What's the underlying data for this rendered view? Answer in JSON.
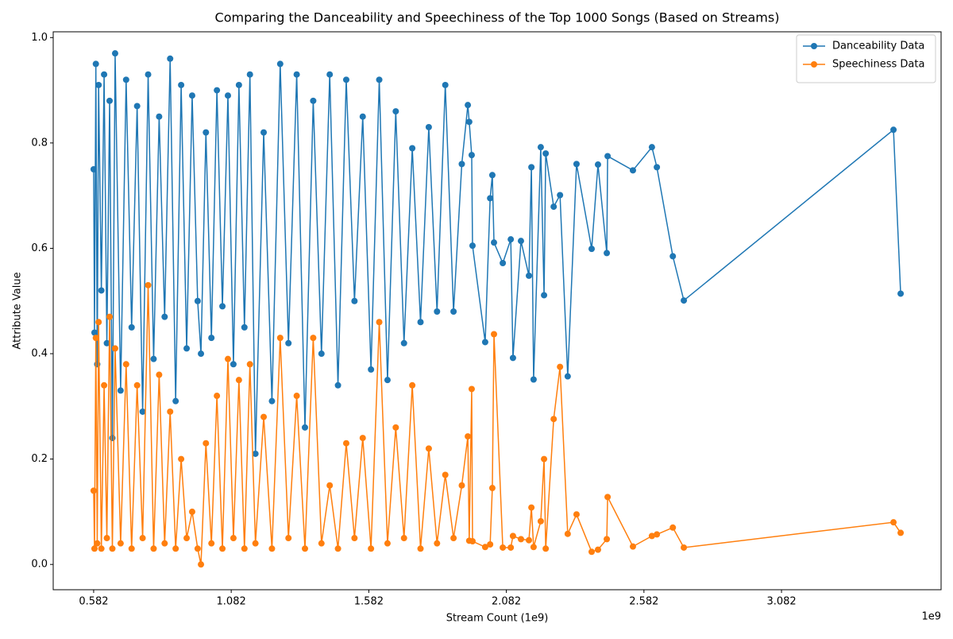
{
  "chart_data": {
    "type": "line",
    "title": "Comparing the Danceability and Speechiness of the Top 1000 Songs (Based on Streams)",
    "xlabel": "Stream Count (1e9)",
    "ylabel": "Attribute Value",
    "x_offset_label": "1e9",
    "x": [
      0.582,
      0.585,
      0.59,
      0.595,
      0.6,
      0.61,
      0.62,
      0.63,
      0.64,
      0.65,
      0.66,
      0.68,
      0.7,
      0.72,
      0.74,
      0.76,
      0.78,
      0.8,
      0.82,
      0.84,
      0.86,
      0.88,
      0.9,
      0.92,
      0.94,
      0.96,
      0.972,
      0.99,
      1.01,
      1.03,
      1.05,
      1.07,
      1.09,
      1.11,
      1.13,
      1.15,
      1.17,
      1.2,
      1.23,
      1.26,
      1.29,
      1.32,
      1.35,
      1.38,
      1.41,
      1.44,
      1.47,
      1.5,
      1.53,
      1.56,
      1.59,
      1.62,
      1.65,
      1.68,
      1.71,
      1.74,
      1.77,
      1.8,
      1.83,
      1.86,
      1.89,
      1.92,
      1.942,
      1.947,
      1.956,
      1.959,
      2.005,
      2.023,
      2.031,
      2.037,
      2.069,
      2.098,
      2.106,
      2.135,
      2.164,
      2.173,
      2.181,
      2.207,
      2.219,
      2.225,
      2.254,
      2.277,
      2.305,
      2.337,
      2.392,
      2.415,
      2.447,
      2.45,
      2.542,
      2.611,
      2.629,
      2.687,
      2.727,
      3.489,
      3.515
    ],
    "series": [
      {
        "name": "Danceability Data",
        "color": "#1f77b4",
        "values": [
          0.75,
          0.44,
          0.95,
          0.38,
          0.91,
          0.52,
          0.93,
          0.42,
          0.88,
          0.24,
          0.97,
          0.33,
          0.92,
          0.45,
          0.87,
          0.29,
          0.93,
          0.39,
          0.85,
          0.47,
          0.96,
          0.31,
          0.91,
          0.41,
          0.89,
          0.5,
          0.4,
          0.82,
          0.43,
          0.9,
          0.49,
          0.89,
          0.38,
          0.91,
          0.45,
          0.93,
          0.21,
          0.82,
          0.31,
          0.95,
          0.42,
          0.93,
          0.26,
          0.88,
          0.4,
          0.93,
          0.34,
          0.92,
          0.5,
          0.85,
          0.37,
          0.92,
          0.35,
          0.86,
          0.42,
          0.79,
          0.46,
          0.83,
          0.48,
          0.91,
          0.48,
          0.76,
          0.872,
          0.84,
          0.777,
          0.605,
          0.422,
          0.695,
          0.739,
          0.611,
          0.572,
          0.617,
          0.392,
          0.614,
          0.548,
          0.754,
          0.351,
          0.792,
          0.511,
          0.78,
          0.679,
          0.701,
          0.357,
          0.76,
          0.599,
          0.759,
          0.591,
          0.775,
          0.748,
          0.792,
          0.754,
          0.585,
          0.501,
          0.825,
          0.514
        ]
      },
      {
        "name": "Speechiness Data",
        "color": "#ff7f0e",
        "values": [
          0.14,
          0.03,
          0.43,
          0.04,
          0.46,
          0.03,
          0.34,
          0.05,
          0.47,
          0.03,
          0.41,
          0.04,
          0.38,
          0.03,
          0.34,
          0.05,
          0.53,
          0.03,
          0.36,
          0.04,
          0.29,
          0.03,
          0.2,
          0.05,
          0.1,
          0.03,
          0.0,
          0.23,
          0.04,
          0.32,
          0.03,
          0.39,
          0.05,
          0.35,
          0.03,
          0.38,
          0.04,
          0.28,
          0.03,
          0.43,
          0.05,
          0.32,
          0.03,
          0.43,
          0.04,
          0.15,
          0.03,
          0.23,
          0.05,
          0.24,
          0.03,
          0.46,
          0.04,
          0.26,
          0.05,
          0.34,
          0.03,
          0.22,
          0.04,
          0.17,
          0.05,
          0.15,
          0.243,
          0.045,
          0.333,
          0.044,
          0.033,
          0.038,
          0.145,
          0.437,
          0.032,
          0.032,
          0.054,
          0.048,
          0.046,
          0.108,
          0.033,
          0.082,
          0.2,
          0.03,
          0.276,
          0.375,
          0.058,
          0.095,
          0.024,
          0.028,
          0.048,
          0.128,
          0.034,
          0.054,
          0.057,
          0.07,
          0.032,
          0.08,
          0.06
        ]
      }
    ],
    "xlim": [
      0.435,
      3.662
    ],
    "xticks": [
      0.582,
      1.082,
      1.582,
      2.082,
      2.582,
      3.082
    ],
    "ylim": [
      -0.048,
      1.011
    ],
    "yticks": [
      {
        "value": 0,
        "label": "0.0"
      },
      0.2,
      0.4,
      0.6,
      0.8,
      {
        "value": 1,
        "label": "1.0"
      }
    ],
    "legend": "upper right",
    "markers": true
  }
}
